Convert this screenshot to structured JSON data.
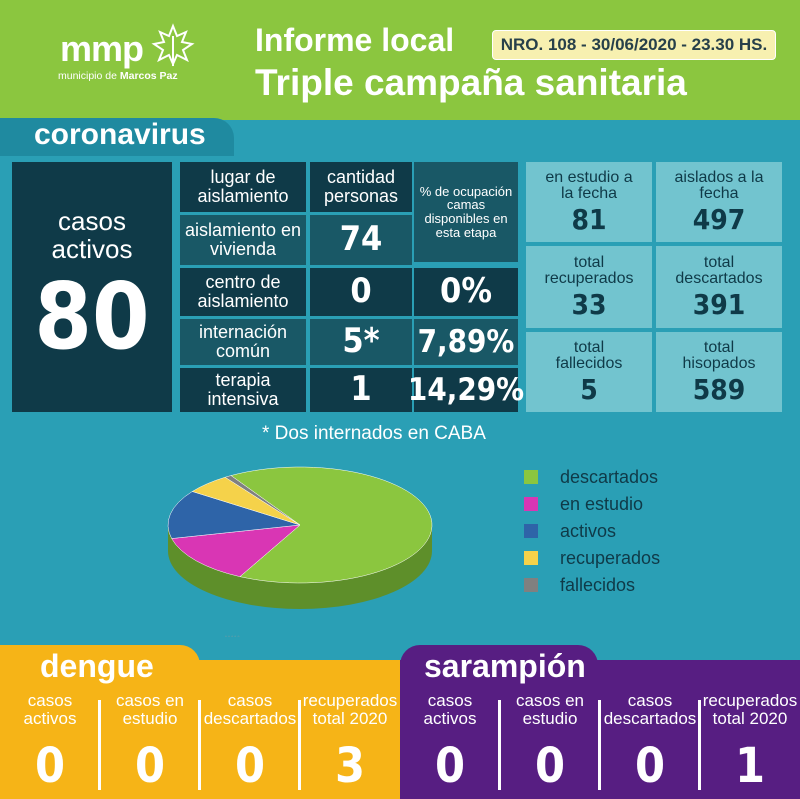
{
  "header": {
    "logo": "mmp",
    "logo_sub_prefix": "municipio de",
    "logo_sub_name": "Marcos Paz",
    "title1": "Informe local",
    "report_id": "NRO. 108 - 30/06/2020 - 23.30 HS.",
    "title2": "Triple campaña sanitaria"
  },
  "coronavirus": {
    "section_title": "coronavirus",
    "casos_activos_label": "casos activos",
    "casos_activos_value": "80",
    "table": {
      "headers": [
        "lugar de aislamiento",
        "cantidad personas",
        "% de ocupación camas disponibles en esta etapa"
      ],
      "rows": [
        {
          "lugar": "aislamiento en vivienda",
          "cantidad": "74",
          "pct": ""
        },
        {
          "lugar": "centro de aislamiento",
          "cantidad": "0",
          "pct": "0%"
        },
        {
          "lugar": "internación común",
          "cantidad": "5*",
          "pct": "7,89%"
        },
        {
          "lugar": "terapia intensiva",
          "cantidad": "1",
          "pct": "14,29%"
        }
      ]
    },
    "stats": [
      {
        "label": "en estudio a la fecha",
        "value": "81"
      },
      {
        "label": "aislados a la fecha",
        "value": "497"
      },
      {
        "label": "total recuperados",
        "value": "33"
      },
      {
        "label": "total descartados",
        "value": "391"
      },
      {
        "label": "total fallecidos",
        "value": "5"
      },
      {
        "label": "total hisopados",
        "value": "589"
      }
    ],
    "note": "* Dos internados en CABA"
  },
  "chart_data": {
    "type": "pie",
    "categories": [
      "descartados",
      "en estudio",
      "activos",
      "recuperados",
      "fallecidos"
    ],
    "values": [
      391,
      81,
      80,
      33,
      5
    ],
    "colors": [
      "#8bc63f",
      "#d936b4",
      "#2e64a8",
      "#f5d24a",
      "#808080"
    ],
    "legend_position": "right"
  },
  "dengue": {
    "title": "dengue",
    "cells": [
      {
        "label": "casos activos",
        "value": "0"
      },
      {
        "label": "casos en estudio",
        "value": "0"
      },
      {
        "label": "casos descartados",
        "value": "0"
      },
      {
        "label": "recuperados total 2020",
        "value": "3"
      }
    ]
  },
  "sarampion": {
    "title": "sarampión",
    "cells": [
      {
        "label": "casos activos",
        "value": "0"
      },
      {
        "label": "casos en estudio",
        "value": "0"
      },
      {
        "label": "casos descartados",
        "value": "0"
      },
      {
        "label": "recuperados total 2020",
        "value": "1"
      }
    ]
  }
}
